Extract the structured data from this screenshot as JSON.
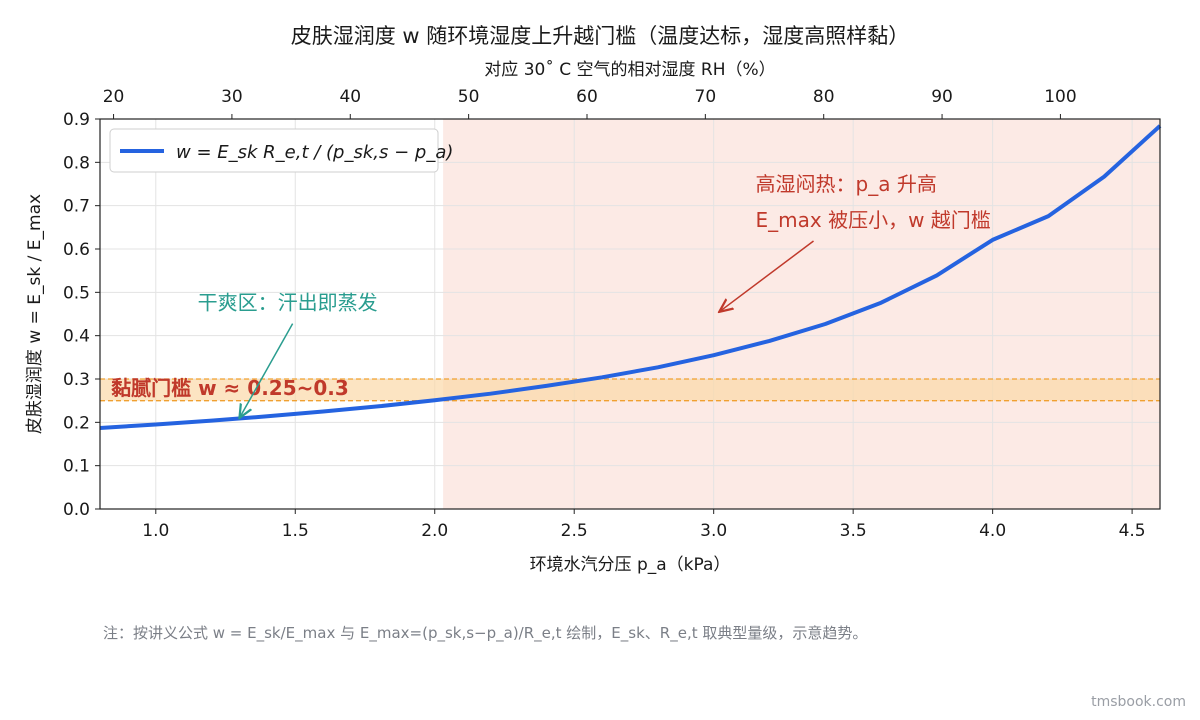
{
  "chart_data": {
    "type": "line",
    "title": "皮肤湿润度 w 随环境湿度上升越门槛（温度达标，湿度高照样黏）",
    "xlabel": "环境水汽分压 p_a（kPa）",
    "ylabel": "皮肤湿润度 w = E_sk / E_max",
    "top_axis_label": "对应 30˚ C 空气的相对湿度 RH（%）",
    "xlim": [
      0.8,
      4.6
    ],
    "ylim": [
      0,
      0.9
    ],
    "x_ticks": [
      1.0,
      1.5,
      2.0,
      2.5,
      3.0,
      3.5,
      4.0,
      4.5
    ],
    "y_ticks": [
      0.0,
      0.1,
      0.2,
      0.3,
      0.4,
      0.5,
      0.6,
      0.7,
      0.8,
      0.9
    ],
    "top_ticks": [
      20,
      30,
      40,
      50,
      60,
      70,
      80,
      90,
      100
    ],
    "top_axis_kpa_per_percent": 0.04243,
    "grid": true,
    "legend_position": "top-left",
    "series": [
      {
        "name": "w = E_sk R_e,t / (p_sk,s − p_a)",
        "color": "#2563e0",
        "x": [
          0.8,
          1.0,
          1.2,
          1.4,
          1.6,
          1.8,
          2.0,
          2.2,
          2.4,
          2.6,
          2.8,
          3.0,
          3.2,
          3.4,
          3.6,
          3.8,
          4.0,
          4.2,
          4.4,
          4.6
        ],
        "y": [
          0.187,
          0.195,
          0.204,
          0.214,
          0.225,
          0.237,
          0.251,
          0.266,
          0.284,
          0.304,
          0.327,
          0.355,
          0.388,
          0.427,
          0.476,
          0.539,
          0.621,
          0.676,
          0.767,
          0.884
        ]
      }
    ],
    "threshold_band": {
      "y_range": [
        0.25,
        0.3
      ],
      "label": "黏腻门槛 w ≈ 0.25~0.3",
      "fill": "#fbd9a8",
      "line_color": "#f0a030"
    },
    "shaded_region": {
      "x_start": 2.03,
      "color": "#fbe3dc"
    },
    "annotations": [
      {
        "id": "dry",
        "text": "干爽区：汗出即蒸发",
        "target": [
          1.3,
          0.21
        ],
        "text_at": [
          1.15,
          0.46
        ],
        "color": "#2a9d8f"
      },
      {
        "id": "humid",
        "lines": [
          "高湿闷热：p_a 升高",
          "E_max 被压小，w 越门槛"
        ],
        "target": [
          3.02,
          0.455
        ],
        "text_at": [
          3.15,
          0.72
        ],
        "color": "#c0392b"
      }
    ]
  },
  "note": "注：按讲义公式 w = E_sk/E_max 与 E_max=(p_sk,s−p_a)/R_e,t 绘制，E_sk、R_e,t 取典型量级，示意趋势。",
  "footer": "tmsbook.com"
}
